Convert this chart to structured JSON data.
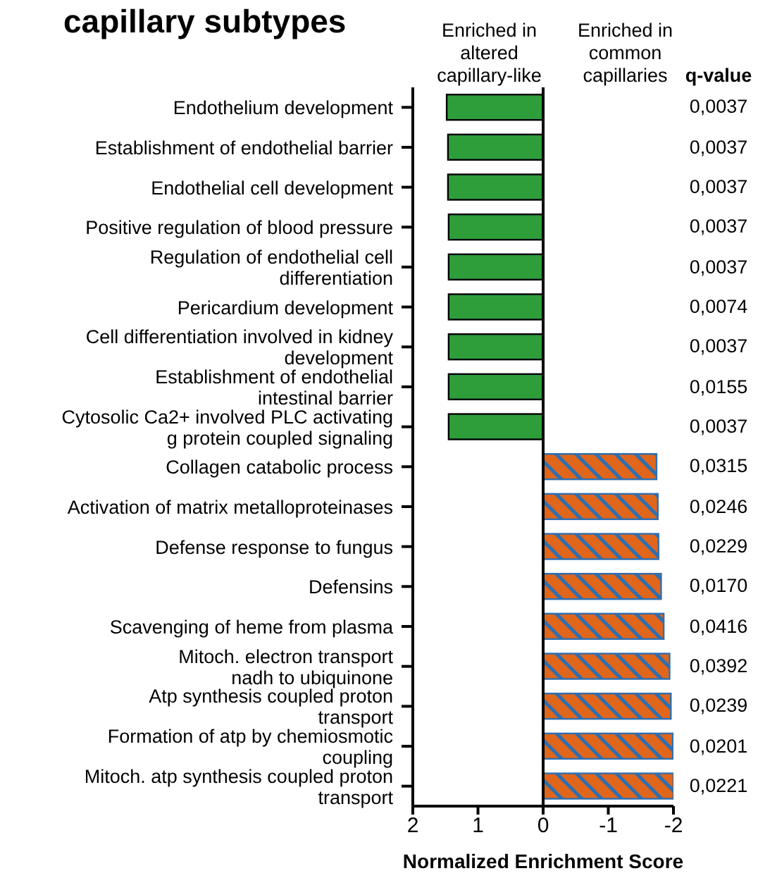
{
  "chart_data": {
    "type": "bar",
    "orientation": "horizontal",
    "title": "capillary subtypes",
    "xlabel": "Normalized Enrichment Score",
    "categories": [
      "Endothelium development",
      "Establishment of endothelial barrier",
      "Endothelial cell development",
      "Positive regulation of blood pressure",
      "Regulation of endothelial cell\ndifferentiation",
      "Pericardium development",
      "Cell differentiation involved in kidney\ndevelopment",
      "Establishment of endothelial\nintestinal barrier",
      "Cytosolic Ca2+ involved PLC activating\ng protein coupled signaling",
      "Collagen catabolic process",
      "Activation of matrix metalloproteinases",
      "Defense response to fungus",
      "Defensins",
      "Scavenging of heme from plasma",
      "Mitoch. electron transport\nnadh to ubiquinone",
      "Atp synthesis coupled proton\ntransport",
      "Formation of atp by chemiosmotic\ncoupling",
      "Mitoch. atp synthesis coupled proton\ntransport"
    ],
    "series": [
      {
        "color": "#2e9e3a",
        "values": [
          1.48,
          1.46,
          1.46,
          1.45,
          1.45,
          1.45,
          1.45,
          1.45,
          1.45,
          null,
          null,
          null,
          null,
          null,
          null,
          null,
          null,
          null
        ]
      },
      {
        "color": "#e0661c",
        "values": [
          null,
          null,
          null,
          null,
          null,
          null,
          null,
          null,
          null,
          -1.74,
          -1.76,
          -1.77,
          -1.81,
          -1.85,
          -1.94,
          -1.96,
          -1.99,
          -2.0
        ]
      }
    ],
    "xlim": [
      2,
      -2
    ],
    "xticks": [
      2,
      1,
      0,
      -1,
      -2
    ],
    "grid": false,
    "legend": false,
    "ref_lines": [
      {
        "axis": "x",
        "value": 0,
        "color": "#000000"
      }
    ],
    "annotations": [
      "Enriched in\naltered\ncapillary-like",
      "Enriched in\ncommon\ncapillaries",
      "q-value",
      "0,0037",
      "0,0037",
      "0,0037",
      "0,0037",
      "0,0037",
      "0,0074",
      "0,0037",
      "0,0155",
      "0,0037",
      "0,0315",
      "0,0246",
      "0,0229",
      "0,0170",
      "0,0416",
      "0,0392",
      "0,0239",
      "0,0201",
      "0,0221"
    ]
  }
}
